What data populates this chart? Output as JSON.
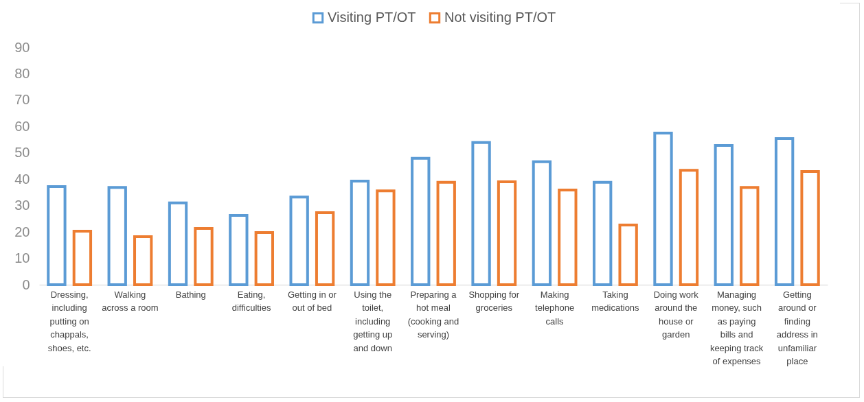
{
  "chart_data": {
    "type": "bar",
    "categories": [
      "Dressing, including putting on chappals, shoes, etc.",
      "Walking across a room",
      "Bathing",
      "Eating, difficulties",
      "Getting in or out of bed",
      "Using the toilet, including getting up and down",
      "Preparing a hot meal (cooking and serving)",
      "Shopping for groceries",
      "Making telephone calls",
      "Taking medications",
      "Doing work around the house or garden",
      "Managing money, such as paying bills and keeping track of expenses",
      "Getting around or finding address in unfamiliar place"
    ],
    "series": [
      {
        "name": "Visiting PT/OT",
        "color": "#5b9bd5",
        "values": [
          37.2,
          36.9,
          31,
          26.3,
          33.2,
          39.3,
          47.9,
          53.9,
          46.6,
          38.8,
          57.5,
          52.8,
          55.4
        ]
      },
      {
        "name": "Not visiting PT/OT",
        "color": "#ed7d31",
        "values": [
          20.3,
          18.2,
          21.3,
          19.8,
          27.3,
          35.6,
          38.8,
          39,
          35.9,
          22.6,
          43.4,
          36.9,
          42.9
        ]
      }
    ],
    "ylim": [
      0,
      90
    ],
    "yticks": [
      0,
      10,
      20,
      30,
      40,
      50,
      60,
      70,
      80,
      90
    ],
    "legend": "top"
  }
}
